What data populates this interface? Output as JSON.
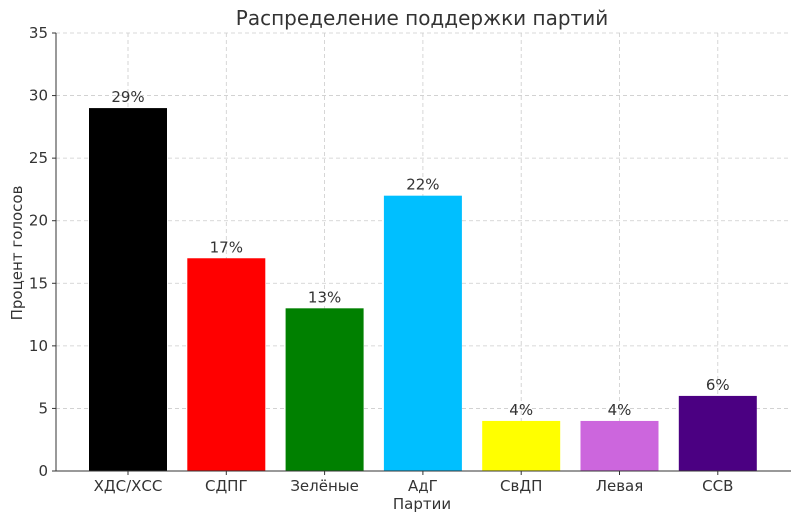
{
  "chart_data": {
    "type": "bar",
    "title": "Распределение поддержки партий",
    "xlabel": "Партии",
    "ylabel": "Процент голосов",
    "categories": [
      "ХДС/ХСС",
      "СДПГ",
      "Зелёные",
      "АдГ",
      "СвДП",
      "Левая",
      "ССВ"
    ],
    "values": [
      29,
      17,
      13,
      22,
      4,
      4,
      6
    ],
    "data_labels": [
      "29%",
      "17%",
      "13%",
      "22%",
      "4%",
      "4%",
      "6%"
    ],
    "colors": [
      "#000000",
      "#ff0000",
      "#008000",
      "#00bfff",
      "#ffff00",
      "#cc66dd",
      "#4b0082"
    ],
    "ylim": [
      0,
      35
    ],
    "yticks": [
      0,
      5,
      10,
      15,
      20,
      25,
      30,
      35
    ],
    "grid": true
  }
}
